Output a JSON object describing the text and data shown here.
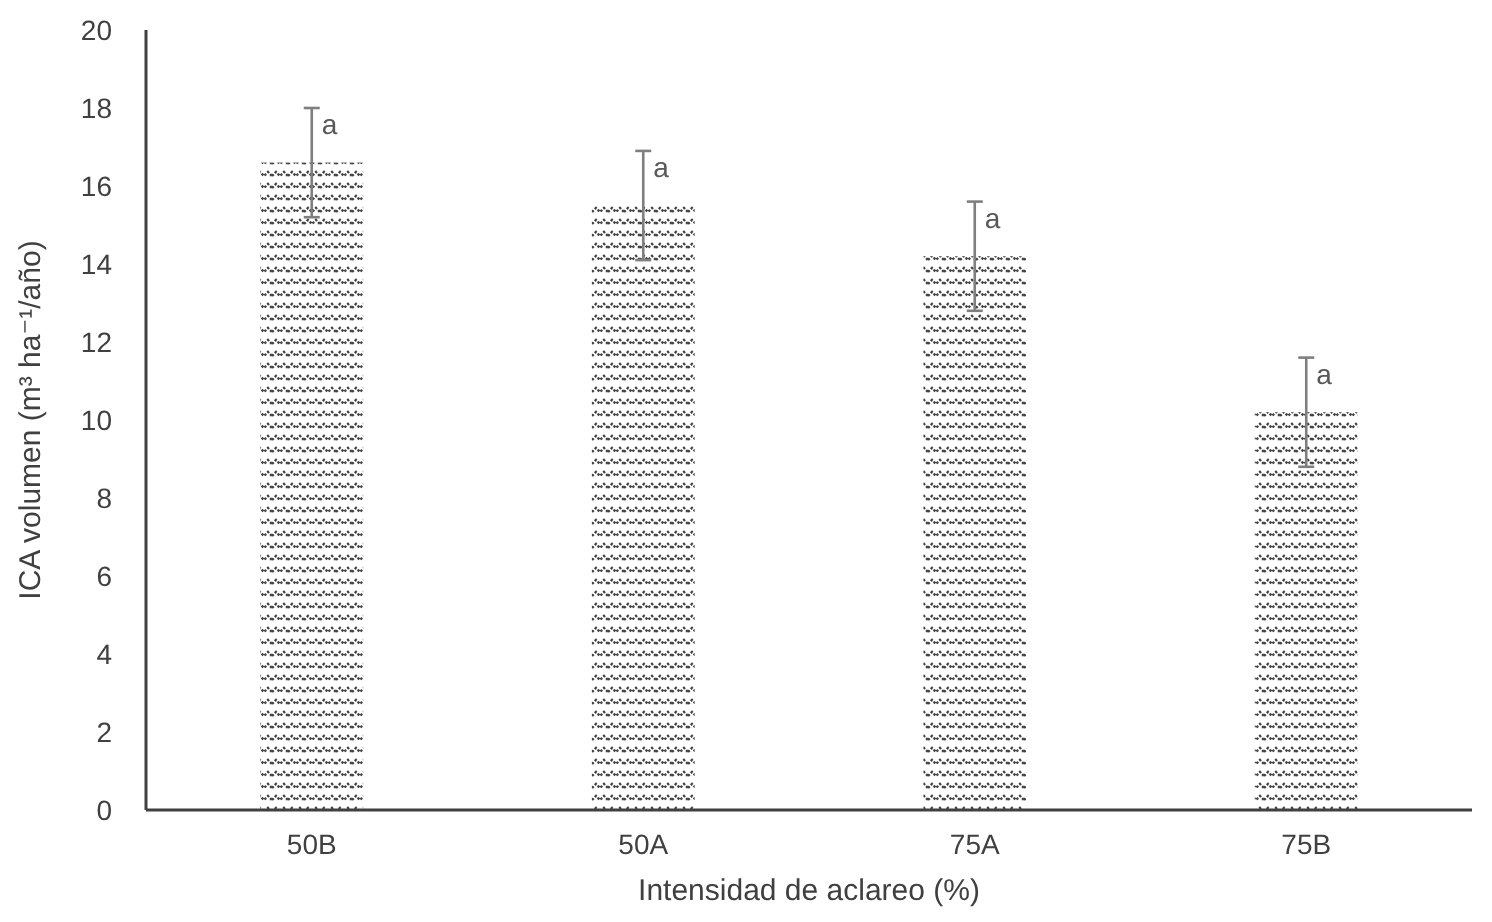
{
  "chart_data": {
    "type": "bar",
    "xlabel": "Intensidad de aclareo (%)",
    "ylabel": "ICA volumen (m³ ha⁻¹/año)",
    "categories": [
      "50B",
      "50A",
      "75A",
      "75B"
    ],
    "values": [
      16.6,
      15.5,
      14.2,
      10.2
    ],
    "errors": [
      1.4,
      1.4,
      1.4,
      1.4
    ],
    "color": "#404040",
    "ylim": [
      0,
      20
    ],
    "yticks": [
      0,
      2,
      4,
      6,
      8,
      10,
      12,
      14,
      16,
      18,
      20
    ],
    "grid": false,
    "annotations": [
      {
        "text": "a",
        "x": "50B",
        "y": 18
      },
      {
        "text": "a",
        "x": "50A",
        "y": 16.9
      },
      {
        "text": "a",
        "x": "75A",
        "y": 15.6
      },
      {
        "text": "a",
        "x": "75B",
        "y": 11.6
      }
    ]
  }
}
